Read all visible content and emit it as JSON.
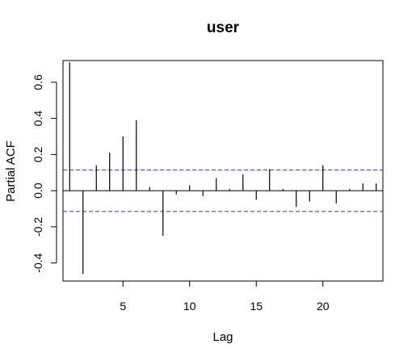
{
  "chart_data": {
    "type": "bar",
    "title": "user",
    "xlabel": "Lag",
    "ylabel": "Partial ACF",
    "xlim": [
      0.5,
      24.5
    ],
    "ylim": [
      -0.5,
      0.72
    ],
    "x_ticks": [
      5,
      10,
      15,
      20
    ],
    "y_ticks": [
      -0.4,
      -0.2,
      0.0,
      0.2,
      0.4,
      0.6
    ],
    "y_tick_labels": [
      "-0.4",
      "-0.2",
      "0.0",
      "0.2",
      "0.4",
      "0.6"
    ],
    "x_tick_labels": [
      "5",
      "10",
      "15",
      "20"
    ],
    "confidence_bound": 0.115,
    "lags": [
      1,
      2,
      3,
      4,
      5,
      6,
      7,
      8,
      9,
      10,
      11,
      12,
      13,
      14,
      15,
      16,
      17,
      18,
      19,
      20,
      21,
      22,
      23,
      24
    ],
    "values": [
      0.71,
      -0.46,
      0.14,
      0.21,
      0.3,
      0.39,
      0.02,
      -0.25,
      -0.02,
      0.03,
      -0.03,
      0.07,
      0.01,
      0.09,
      -0.05,
      0.12,
      0.01,
      -0.09,
      -0.06,
      0.14,
      -0.07,
      0.01,
      0.04,
      0.04
    ],
    "colors": {
      "bars": "#000000",
      "zero_line": "#000000",
      "confidence": "#3a3acc"
    }
  }
}
